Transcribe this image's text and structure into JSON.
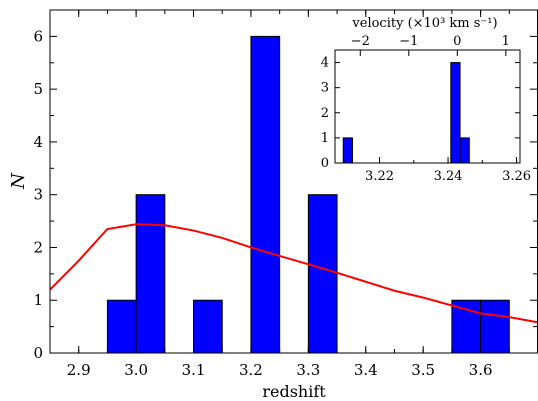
{
  "chart_data": [
    {
      "type": "bar",
      "role": "main",
      "xlabel": "redshift",
      "ylabel": "N",
      "xlim": [
        2.85,
        3.7
      ],
      "ylim": [
        0,
        6.5
      ],
      "bin_width": 0.05,
      "x_ticks": [
        2.9,
        3.0,
        3.1,
        3.2,
        3.3,
        3.4,
        3.5,
        3.6
      ],
      "x_tick_labels": [
        "2.9",
        "3.0",
        "3.1",
        "3.2",
        "3.3",
        "3.4",
        "3.5",
        "3.6"
      ],
      "y_ticks": [
        0,
        1,
        2,
        3,
        4,
        5,
        6
      ],
      "y_tick_labels": [
        "0",
        "1",
        "2",
        "3",
        "4",
        "5",
        "6"
      ],
      "bars": [
        {
          "x0": 2.95,
          "x1": 3.0,
          "value": 1
        },
        {
          "x0": 3.0,
          "x1": 3.05,
          "value": 3
        },
        {
          "x0": 3.1,
          "x1": 3.15,
          "value": 1
        },
        {
          "x0": 3.2,
          "x1": 3.25,
          "value": 6
        },
        {
          "x0": 3.3,
          "x1": 3.35,
          "value": 3
        },
        {
          "x0": 3.55,
          "x1": 3.6,
          "value": 1
        },
        {
          "x0": 3.6,
          "x1": 3.65,
          "value": 1
        }
      ],
      "bar_color": "#0000ff",
      "curve": {
        "color": "#ff0000",
        "x": [
          2.85,
          2.9,
          2.95,
          3.0,
          3.05,
          3.1,
          3.15,
          3.2,
          3.25,
          3.3,
          3.35,
          3.4,
          3.45,
          3.5,
          3.55,
          3.6,
          3.65,
          3.7
        ],
        "y": [
          1.2,
          1.75,
          2.35,
          2.44,
          2.42,
          2.32,
          2.18,
          2.0,
          1.84,
          1.68,
          1.52,
          1.35,
          1.18,
          1.05,
          0.9,
          0.75,
          0.68,
          0.58
        ]
      },
      "grid": false
    },
    {
      "type": "bar",
      "role": "inset",
      "title": "velocity (×10³ km s⁻¹)",
      "xlim": [
        3.207,
        3.261
      ],
      "ylim": [
        0,
        4.5
      ],
      "bin_width": 0.0026,
      "x_ticks": [
        3.22,
        3.24,
        3.26
      ],
      "x_tick_labels": [
        "3.22",
        "3.24",
        "3.26"
      ],
      "top_axis": {
        "ticks": [
          -2,
          -1,
          0,
          1
        ],
        "tick_labels": [
          "−2",
          "−1",
          "0",
          "1"
        ],
        "z_of_zero": 3.2427,
        "z_per_unit": 0.01416
      },
      "y_ticks": [
        0,
        1,
        2,
        3,
        4
      ],
      "y_tick_labels": [
        "0",
        "1",
        "2",
        "3",
        "4"
      ],
      "bars": [
        {
          "x0": 3.2094,
          "x1": 3.2121,
          "value": 1
        },
        {
          "x0": 3.2408,
          "x1": 3.2435,
          "value": 4
        },
        {
          "x0": 3.2435,
          "x1": 3.2462,
          "value": 1
        }
      ],
      "bar_color": "#0000ff",
      "grid": false
    }
  ]
}
